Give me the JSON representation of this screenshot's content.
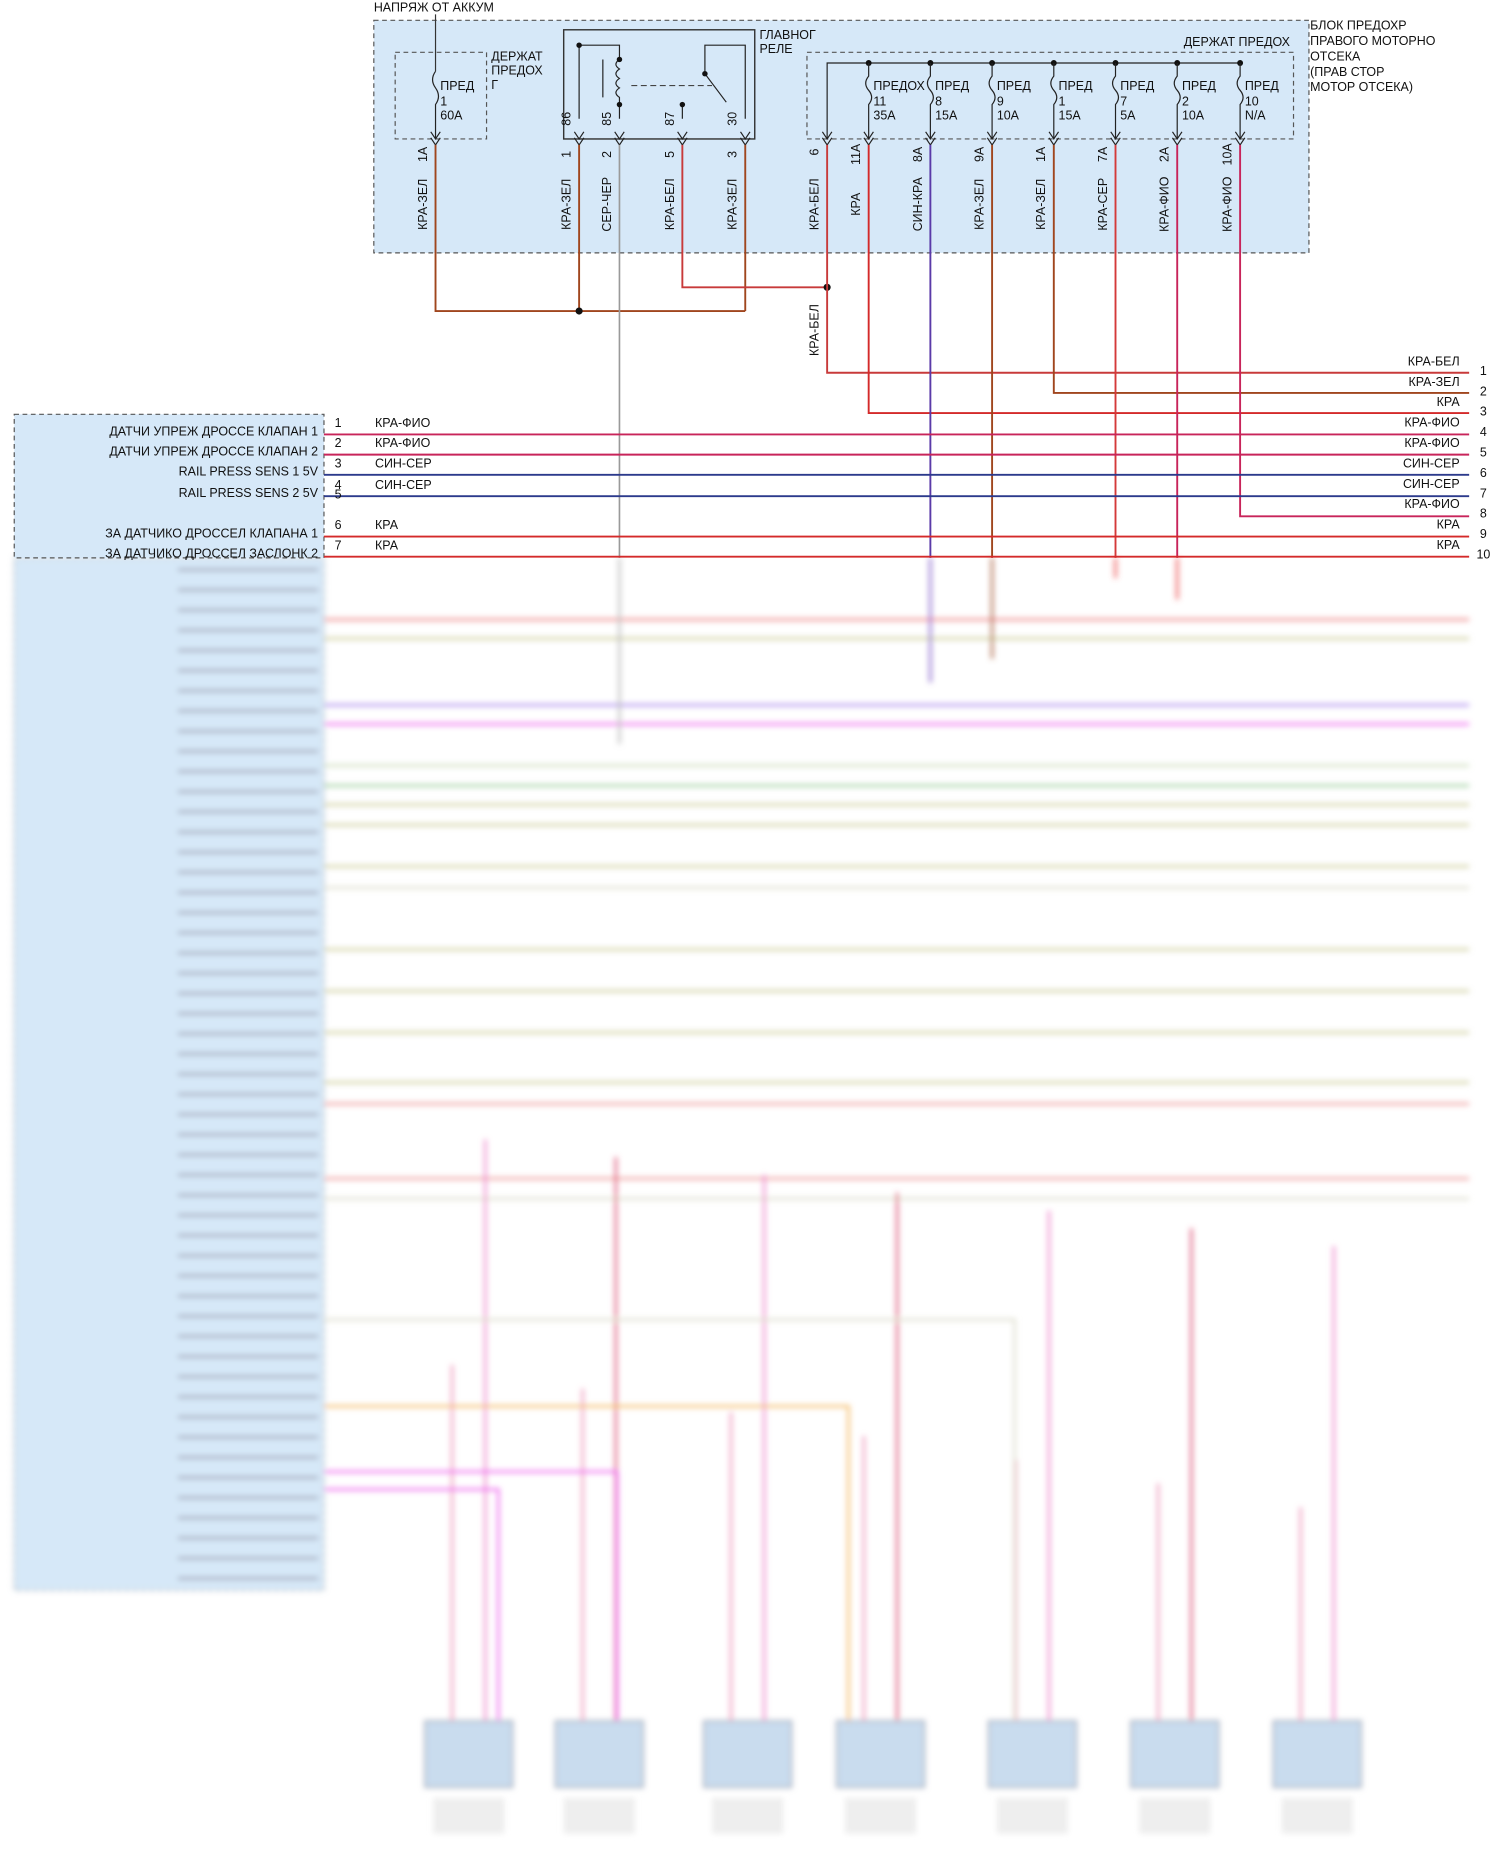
{
  "battery_label": "НАПРЯЖ ОТ АККУМ",
  "fuse_holder_g": {
    "label_lines": [
      "ДЕРЖАТ",
      "ПРЕДОХ",
      "Г"
    ],
    "fuse": {
      "type": "ПРЕД",
      "number": "1",
      "rating": "60A"
    },
    "pin": "1A",
    "wire": "КРА-ЗЕЛ"
  },
  "main_relay": {
    "label_lines": [
      "ГЛАВНОГ",
      "РЕЛЕ"
    ],
    "pins": [
      {
        "terminal": "86",
        "pin": "1",
        "wire": "КРА-ЗЕЛ"
      },
      {
        "terminal": "85",
        "pin": "2",
        "wire": "СЕР-ЧЕР"
      },
      {
        "terminal": "87",
        "pin": "5",
        "wire": "КРА-БЕЛ"
      },
      {
        "terminal": "30",
        "pin": "3",
        "wire": "КРА-ЗЕЛ"
      }
    ]
  },
  "fuse_holder": {
    "label": "ДЕРЖАТ ПРЕДОХ",
    "ground_pin": {
      "pin": "6",
      "wire": "КРА-БЕЛ"
    },
    "splice_wire": "КРА-БЕЛ",
    "fuses": [
      {
        "type": "ПРЕДОХ",
        "number": "11",
        "rating": "35A",
        "pin": "11A",
        "wire": "КРА"
      },
      {
        "type": "ПРЕД",
        "number": "8",
        "rating": "15A",
        "pin": "8A",
        "wire": "СИН-КРА"
      },
      {
        "type": "ПРЕД",
        "number": "9",
        "rating": "10A",
        "pin": "9A",
        "wire": "КРА-ЗЕЛ"
      },
      {
        "type": "ПРЕД",
        "number": "1",
        "rating": "15A",
        "pin": "1A",
        "wire": "КРА-ЗЕЛ"
      },
      {
        "type": "ПРЕД",
        "number": "7",
        "rating": "5A",
        "pin": "7A",
        "wire": "КРА-СЕР"
      },
      {
        "type": "ПРЕД",
        "number": "2",
        "rating": "10A",
        "pin": "2A",
        "wire": "КРА-ФИО"
      },
      {
        "type": "ПРЕД",
        "number": "10",
        "rating": "N/A",
        "pin": "10A",
        "wire": "КРА-ФИО"
      }
    ]
  },
  "fuse_block_label": [
    "БЛОК ПРЕДОХР",
    "ПРАВОГО МОТОРНО",
    "ОТСЕКА",
    "(ПРАВ СТОР",
    "МОТОР ОТСЕКА)"
  ],
  "ecu_pins": [
    {
      "pin": "1",
      "label": "ДАТЧИ УПРЕЖ ДРОССЕ КЛАПАН 1",
      "wire": "КРА-ФИО"
    },
    {
      "pin": "2",
      "label": "ДАТЧИ УПРЕЖ ДРОССЕ КЛАПАН 2",
      "wire": "КРА-ФИО"
    },
    {
      "pin": "3",
      "label": "RAIL PRESS SENS 1 5V",
      "wire": "СИН-СЕР"
    },
    {
      "pin": "4",
      "label": "RAIL PRESS SENS 2 5V",
      "wire": "СИН-СЕР"
    },
    {
      "pin": "5"
    },
    {
      "pin": "6",
      "label": "ЗА ДАТЧИКО ДРОССЕЛ КЛАПАНА 1",
      "wire": "КРА"
    },
    {
      "pin": "7",
      "label": "ЗА ДАТЧИКО ДРОССЕЛ ЗАСЛОНК 2",
      "wire": "КРА"
    }
  ],
  "right_connector": [
    {
      "pin": "1",
      "wire": "КРА-БЕЛ"
    },
    {
      "pin": "2",
      "wire": "КРА-ЗЕЛ"
    },
    {
      "pin": "3",
      "wire": "КРА"
    },
    {
      "pin": "4",
      "wire": "КРА-ФИО"
    },
    {
      "pin": "5",
      "wire": "КРА-ФИО"
    },
    {
      "pin": "6",
      "wire": "СИН-СЕР"
    },
    {
      "pin": "7",
      "wire": "СИН-СЕР"
    },
    {
      "pin": "8",
      "wire": "КРА-ФИО"
    },
    {
      "pin": "9",
      "wire": "КРА"
    },
    {
      "pin": "10",
      "wire": "КРА"
    }
  ]
}
